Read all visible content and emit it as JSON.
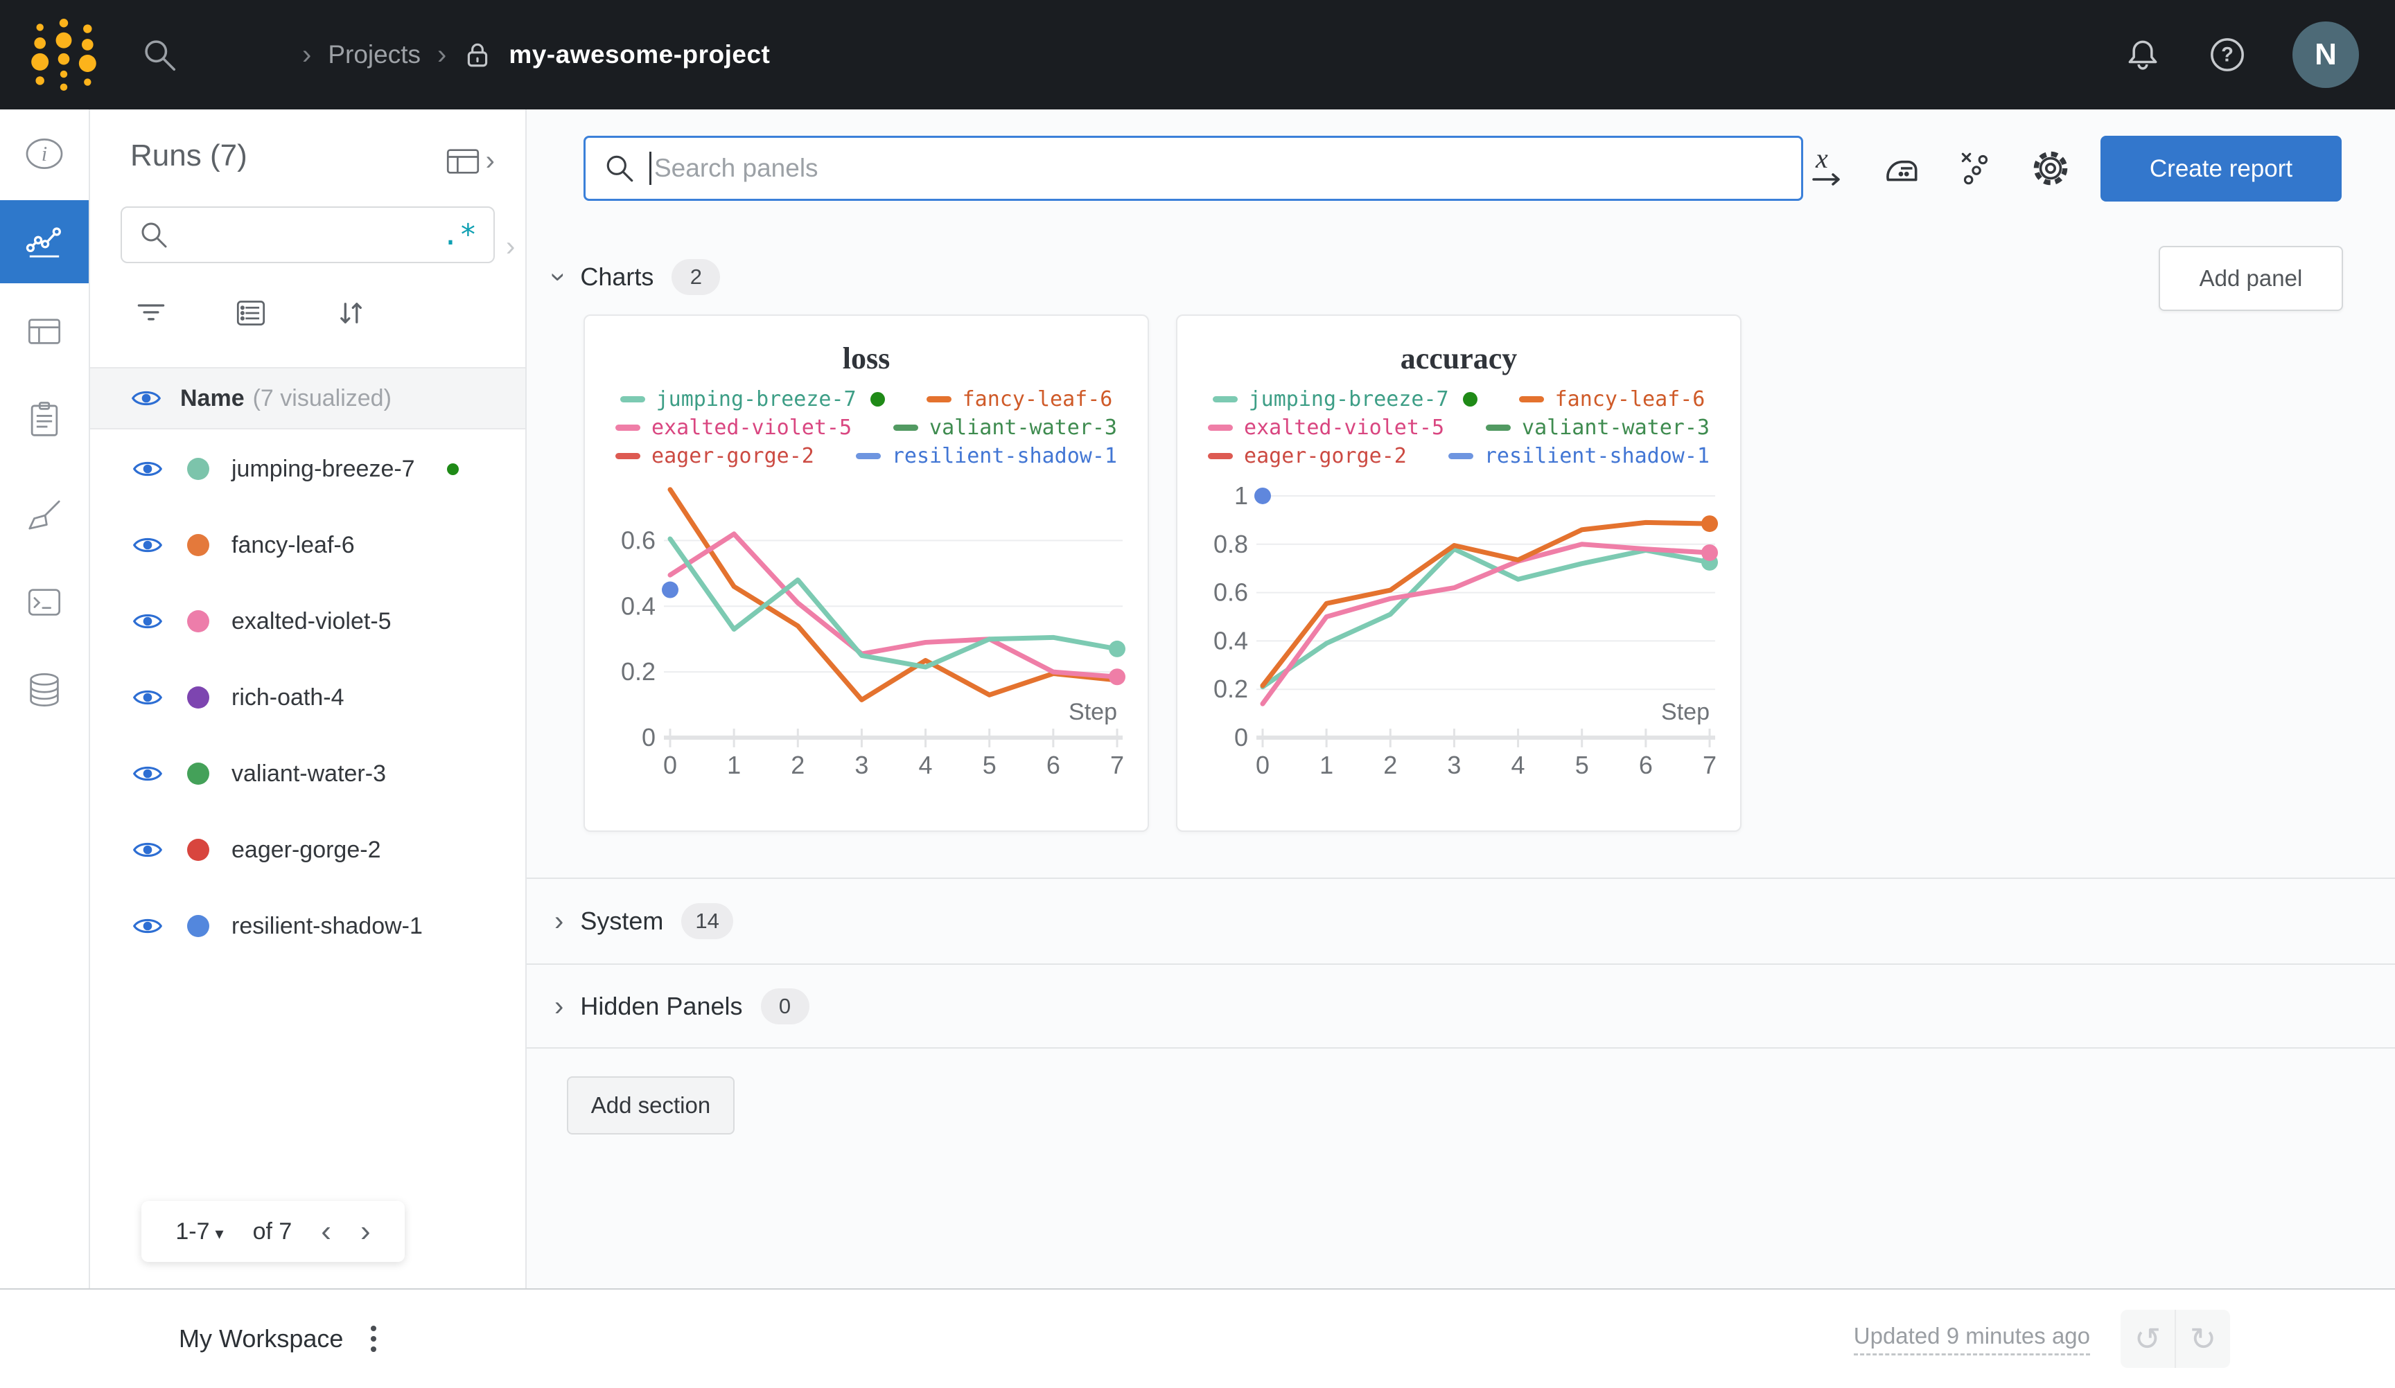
{
  "topbar": {
    "breadcrumb_sep": "›",
    "projects_label": "Projects",
    "project_name": "my-awesome-project",
    "avatar_initial": "N"
  },
  "glyphs": {
    "chevron_right": "›",
    "chevron_left": "‹",
    "caret_down": "▾",
    "undo": "↺",
    "redo": "↻",
    "regex": ".*"
  },
  "runs_panel": {
    "title": "Runs (7)",
    "search_placeholder": "",
    "header_name": "Name",
    "header_suffix": "(7 visualized)",
    "runs": [
      {
        "name": "jumping-breeze-7",
        "color": "#7cc4ab",
        "running": true
      },
      {
        "name": "fancy-leaf-6",
        "color": "#e4793b"
      },
      {
        "name": "exalted-violet-5",
        "color": "#ed7daa"
      },
      {
        "name": "rich-oath-4",
        "color": "#7d45b0"
      },
      {
        "name": "valiant-water-3",
        "color": "#44a159"
      },
      {
        "name": "eager-gorge-2",
        "color": "#d8453e"
      },
      {
        "name": "resilient-shadow-1",
        "color": "#5387dd"
      }
    ],
    "pagination": {
      "range": "1-7",
      "of": "of 7"
    }
  },
  "main": {
    "search_placeholder": "Search panels",
    "create_report_label": "Create report",
    "add_panel_label": "Add panel",
    "sections": [
      {
        "label": "Charts",
        "count": "2"
      },
      {
        "label": "System",
        "count": "14"
      },
      {
        "label": "Hidden Panels",
        "count": "0"
      }
    ],
    "add_section_label": "Add section"
  },
  "footer": {
    "workspace_label": "My Workspace",
    "updated_label": "Updated 9 minutes ago"
  },
  "chart_data": [
    {
      "id": "loss",
      "type": "line",
      "title": "loss",
      "xlabel": "Step",
      "x": [
        0,
        1,
        2,
        3,
        4,
        5,
        6,
        7
      ],
      "ylim": [
        0,
        0.78
      ],
      "yticks": [
        0,
        0.2,
        0.4,
        0.6
      ],
      "grid": true,
      "legend_position": "top",
      "legend": [
        {
          "label": "jumping-breeze-7",
          "color": "#7ccab2",
          "text_color": "#3d9e86",
          "running": true
        },
        {
          "label": "fancy-leaf-6",
          "color": "#e4722e",
          "text_color": "#cf5a28"
        },
        {
          "label": "exalted-violet-5",
          "color": "#ef7ea7",
          "text_color": "#d94680"
        },
        {
          "label": "valiant-water-3",
          "color": "#529a62",
          "text_color": "#3e8b4f"
        },
        {
          "label": "eager-gorge-2",
          "color": "#dd5a52",
          "text_color": "#cc4a42"
        },
        {
          "label": "resilient-shadow-1",
          "color": "#6e95e0",
          "text_color": "#4276d4"
        }
      ],
      "series": [
        {
          "name": "fancy-leaf-6",
          "color": "#e4722e",
          "values": [
            0.755,
            0.46,
            0.34,
            0.115,
            0.235,
            0.13,
            0.195,
            0.175
          ],
          "end_dot": false
        },
        {
          "name": "exalted-violet-5",
          "color": "#ef7ea7",
          "values": [
            0.495,
            0.62,
            0.41,
            0.255,
            0.29,
            0.3,
            0.2,
            0.185
          ],
          "end_dot": true
        },
        {
          "name": "jumping-breeze-7",
          "color": "#7ccab2",
          "values": [
            0.605,
            0.33,
            0.48,
            0.25,
            0.215,
            0.3,
            0.305,
            0.27
          ],
          "end_dot": true
        },
        {
          "name": "resilient-shadow-1",
          "color": "#5f87dd",
          "point": [
            0,
            0.45
          ]
        }
      ]
    },
    {
      "id": "accuracy",
      "type": "line",
      "title": "accuracy",
      "xlabel": "Step",
      "x": [
        0,
        1,
        2,
        3,
        4,
        5,
        6,
        7
      ],
      "ylim": [
        0,
        1.06
      ],
      "yticks": [
        0,
        0.2,
        0.4,
        0.6,
        0.8,
        1
      ],
      "grid": true,
      "legend_position": "top",
      "legend": [
        {
          "label": "jumping-breeze-7",
          "color": "#7ccab2",
          "text_color": "#3d9e86",
          "running": true
        },
        {
          "label": "fancy-leaf-6",
          "color": "#e4722e",
          "text_color": "#cf5a28"
        },
        {
          "label": "exalted-violet-5",
          "color": "#ef7ea7",
          "text_color": "#d94680"
        },
        {
          "label": "valiant-water-3",
          "color": "#529a62",
          "text_color": "#3e8b4f"
        },
        {
          "label": "eager-gorge-2",
          "color": "#dd5a52",
          "text_color": "#cc4a42"
        },
        {
          "label": "resilient-shadow-1",
          "color": "#6e95e0",
          "text_color": "#4276d4"
        }
      ],
      "series": [
        {
          "name": "jumping-breeze-7",
          "color": "#7ccab2",
          "values": [
            0.21,
            0.39,
            0.51,
            0.78,
            0.655,
            0.72,
            0.775,
            0.725
          ],
          "end_dot": true
        },
        {
          "name": "exalted-violet-5",
          "color": "#ef7ea7",
          "values": [
            0.14,
            0.5,
            0.575,
            0.62,
            0.73,
            0.8,
            0.78,
            0.765
          ],
          "end_dot": true
        },
        {
          "name": "fancy-leaf-6",
          "color": "#e4722e",
          "values": [
            0.215,
            0.555,
            0.61,
            0.795,
            0.735,
            0.86,
            0.89,
            0.885
          ],
          "end_dot": true
        },
        {
          "name": "resilient-shadow-1",
          "color": "#5f87dd",
          "point": [
            0,
            1.0
          ]
        }
      ]
    }
  ]
}
